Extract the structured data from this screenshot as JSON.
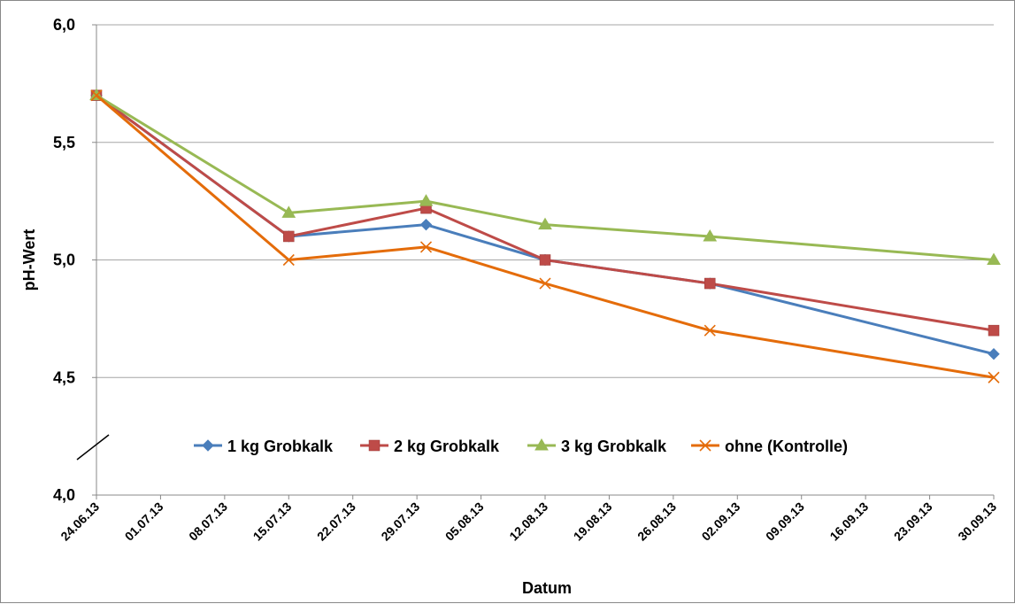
{
  "chart_data": {
    "type": "line",
    "title": "",
    "xlabel": "Datum",
    "ylabel": "pH-Wert",
    "ylim": [
      4.0,
      6.0
    ],
    "yticks": [
      "4,0",
      "4,5",
      "5,0",
      "5,5",
      "6,0"
    ],
    "xlim": [
      "2013-06-24",
      "2013-09-30"
    ],
    "xticks": [
      "24.06.13",
      "01.07.13",
      "08.07.13",
      "15.07.13",
      "22.07.13",
      "29.07.13",
      "05.08.13",
      "12.08.13",
      "19.08.13",
      "26.08.13",
      "02.09.13",
      "09.09.13",
      "16.09.13",
      "23.09.13",
      "30.09.13"
    ],
    "x": [
      "2013-06-24",
      "2013-07-15",
      "2013-07-30",
      "2013-08-12",
      "2013-08-30",
      "2013-09-30"
    ],
    "axis_break": "y",
    "grid": true,
    "legend_position": "inside-bottom",
    "series": [
      {
        "name": "1 kg Grobkalk",
        "values": [
          5.7,
          5.1,
          5.15,
          5.0,
          4.9,
          4.6
        ],
        "color": "#4a7ebb",
        "marker": "diamond"
      },
      {
        "name": "2 kg Grobkalk",
        "values": [
          5.7,
          5.1,
          5.22,
          5.0,
          4.9,
          4.7
        ],
        "color": "#be4b48",
        "marker": "square"
      },
      {
        "name": "3 kg Grobkalk",
        "values": [
          5.7,
          5.2,
          5.25,
          5.15,
          5.1,
          5.0
        ],
        "color": "#98b954",
        "marker": "triangle"
      },
      {
        "name": "ohne (Kontrolle)",
        "values": [
          5.7,
          5.0,
          5.055,
          4.9,
          4.7,
          4.5
        ],
        "color": "#e46c0a",
        "marker": "x"
      }
    ]
  }
}
